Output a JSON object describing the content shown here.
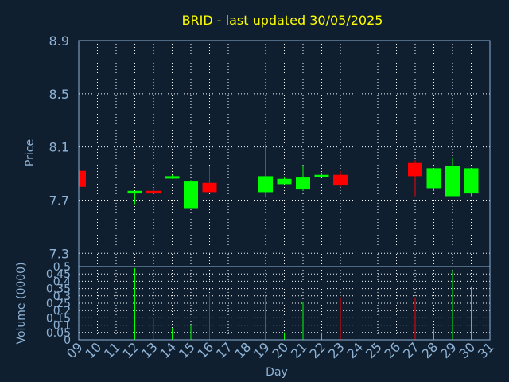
{
  "chart_data": [
    {
      "type": "candlestick",
      "title": "BRID - last updated 30/05/2025",
      "ylabel": "Price",
      "ylim": [
        7.2,
        8.9
      ],
      "yticks": [
        7.3,
        7.7,
        8.1,
        8.5,
        8.9
      ],
      "ytick_labels": [
        "7.3",
        "7.7",
        "8.1",
        "8.5",
        "8.9"
      ],
      "candles": [
        {
          "day": 9,
          "open": 7.92,
          "high": 7.92,
          "low": 7.8,
          "close": 7.8,
          "color": "#ff0000"
        },
        {
          "day": 12,
          "open": 7.75,
          "high": 7.77,
          "low": 7.67,
          "close": 7.77,
          "color": "#00ff00"
        },
        {
          "day": 13,
          "open": 7.77,
          "high": 7.79,
          "low": 7.75,
          "close": 7.75,
          "color": "#ff0000"
        },
        {
          "day": 14,
          "open": 7.87,
          "high": 7.89,
          "low": 7.86,
          "close": 7.88,
          "color": "#00ff00"
        },
        {
          "day": 15,
          "open": 7.64,
          "high": 7.85,
          "low": 7.64,
          "close": 7.84,
          "color": "#00ff00"
        },
        {
          "day": 16,
          "open": 7.83,
          "high": 7.96,
          "low": 7.76,
          "close": 7.76,
          "color": "#ff0000"
        },
        {
          "day": 19,
          "open": 7.76,
          "high": 8.12,
          "low": 7.72,
          "close": 7.88,
          "color": "#00ff00"
        },
        {
          "day": 20,
          "open": 7.82,
          "high": 7.87,
          "low": 7.82,
          "close": 7.86,
          "color": "#00ff00"
        },
        {
          "day": 21,
          "open": 7.78,
          "high": 7.96,
          "low": 7.77,
          "close": 7.87,
          "color": "#00ff00"
        },
        {
          "day": 22,
          "open": 7.88,
          "high": 7.9,
          "low": 7.87,
          "close": 7.89,
          "color": "#00ff00"
        },
        {
          "day": 23,
          "open": 7.89,
          "high": 7.92,
          "low": 7.8,
          "close": 7.81,
          "color": "#ff0000"
        },
        {
          "day": 27,
          "open": 7.98,
          "high": 8.0,
          "low": 7.73,
          "close": 7.88,
          "color": "#ff0000"
        },
        {
          "day": 28,
          "open": 7.79,
          "high": 7.94,
          "low": 7.77,
          "close": 7.94,
          "color": "#00ff00"
        },
        {
          "day": 29,
          "open": 7.73,
          "high": 8.02,
          "low": 7.73,
          "close": 7.96,
          "color": "#00ff00"
        },
        {
          "day": 30,
          "open": 7.75,
          "high": 7.94,
          "low": 7.73,
          "close": 7.94,
          "color": "#00ff00"
        }
      ]
    },
    {
      "type": "bar",
      "ylabel": "Volume (0000)",
      "xlabel": "Day",
      "ylim": [
        0,
        0.5
      ],
      "yticks": [
        0,
        0.05,
        0.1,
        0.15,
        0.2,
        0.25,
        0.3,
        0.35,
        0.4,
        0.45,
        0.5
      ],
      "ytick_labels": [
        "0",
        "0.05",
        "0.1",
        "0.15",
        "0.2",
        "0.25",
        "0.3",
        "0.35",
        "0.4",
        "0.45",
        "0.5"
      ],
      "xticks": [
        9,
        10,
        11,
        12,
        13,
        14,
        15,
        16,
        17,
        18,
        19,
        20,
        21,
        22,
        23,
        24,
        25,
        26,
        27,
        28,
        29,
        30,
        31
      ],
      "xtick_labels": [
        "09",
        "10",
        "11",
        "12",
        "13",
        "14",
        "15",
        "16",
        "17",
        "18",
        "19",
        "20",
        "21",
        "22",
        "23",
        "24",
        "25",
        "26",
        "27",
        "28",
        "29",
        "30",
        "31"
      ],
      "bars": [
        {
          "day": 9,
          "value": 0.02,
          "color": "#ff0000"
        },
        {
          "day": 12,
          "value": 0.49,
          "color": "#00ff00"
        },
        {
          "day": 13,
          "value": 0.15,
          "color": "#ff0000"
        },
        {
          "day": 14,
          "value": 0.08,
          "color": "#00ff00"
        },
        {
          "day": 15,
          "value": 0.1,
          "color": "#00ff00"
        },
        {
          "day": 16,
          "value": 0.31,
          "color": "#ff0000"
        },
        {
          "day": 19,
          "value": 0.3,
          "color": "#00ff00"
        },
        {
          "day": 20,
          "value": 0.05,
          "color": "#00ff00"
        },
        {
          "day": 21,
          "value": 0.26,
          "color": "#00ff00"
        },
        {
          "day": 22,
          "value": 0.05,
          "color": "#00ff00"
        },
        {
          "day": 23,
          "value": 0.29,
          "color": "#ff0000"
        },
        {
          "day": 27,
          "value": 0.29,
          "color": "#ff0000"
        },
        {
          "day": 28,
          "value": 0.07,
          "color": "#00ff00"
        },
        {
          "day": 29,
          "value": 0.47,
          "color": "#00ff00"
        },
        {
          "day": 30,
          "value": 0.36,
          "color": "#00ff00"
        }
      ]
    }
  ],
  "colors": {
    "background": "#0f1f30",
    "axis": "#8fb3d6",
    "grid": "#ffffff",
    "title": "#ffff00",
    "up": "#00ff00",
    "down": "#ff0000"
  }
}
